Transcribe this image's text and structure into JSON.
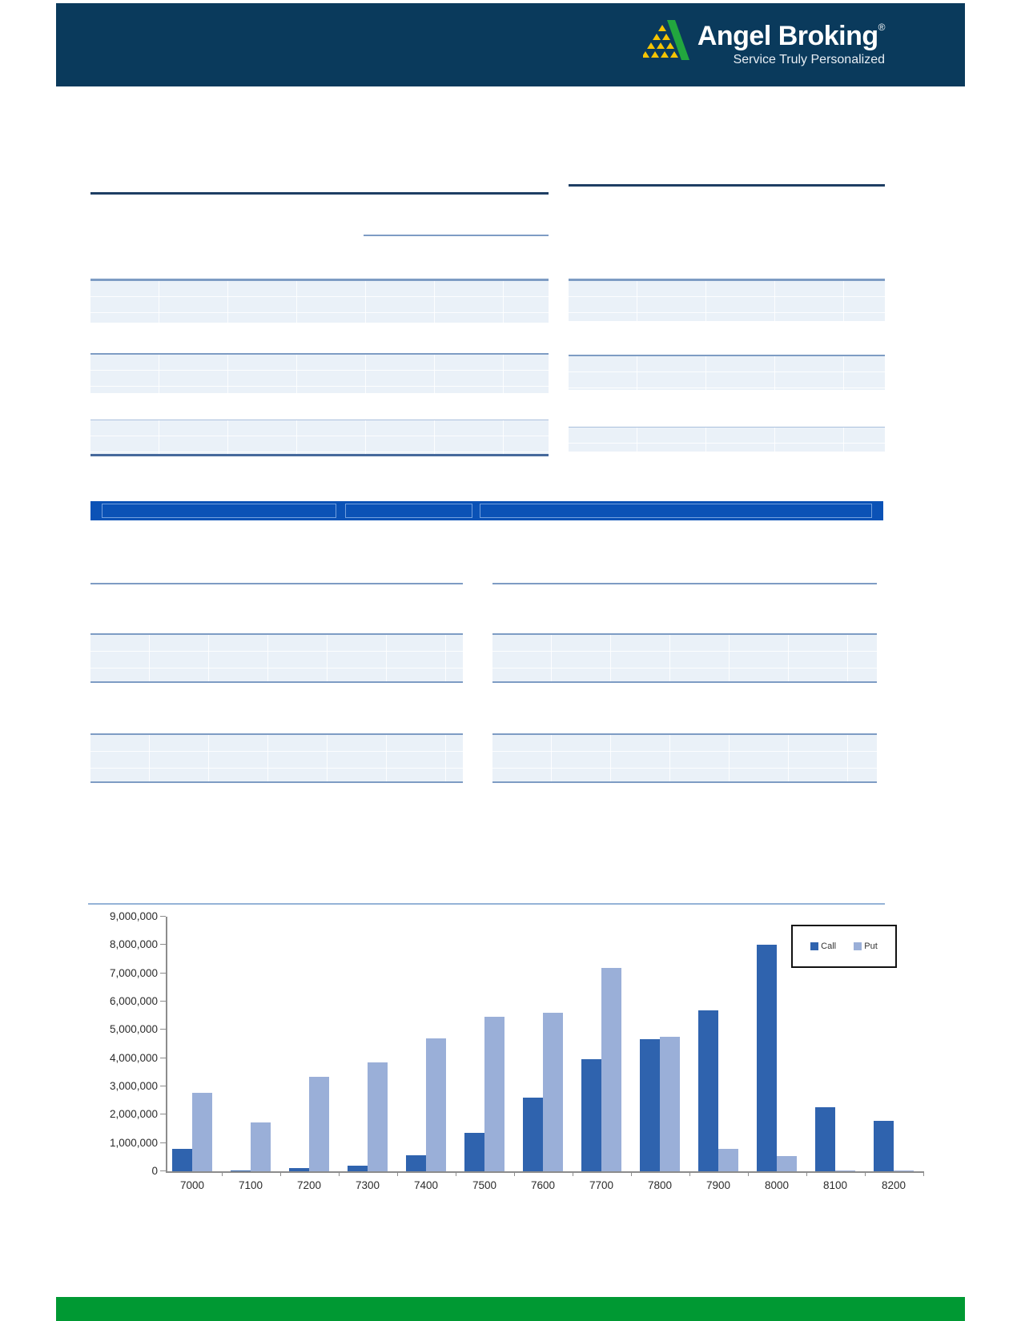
{
  "header": {
    "brand": "Angel Broking",
    "registered_mark": "®",
    "tagline": "Service Truly Personalized",
    "bg_color": "#0A3A5C",
    "logo_green": "#22A63E",
    "logo_yellow": "#F5C402"
  },
  "banner": {
    "bg_color": "#0B52B6"
  },
  "footer": {
    "bg_color": "#009933"
  },
  "accents": {
    "rule_dark_navy": "#1E3E63",
    "rule_medium_blue": "#7E9CC4",
    "rule_light_blue": "#95B3D7",
    "table_fill": "#EAF1F8"
  },
  "chart_data": {
    "type": "bar",
    "title": "",
    "categories": [
      "7000",
      "7100",
      "7200",
      "7300",
      "7400",
      "7500",
      "7600",
      "7700",
      "7800",
      "7900",
      "8000",
      "8100",
      "8200"
    ],
    "series": [
      {
        "name": "Call",
        "color": "#2F63AE",
        "values": [
          800000,
          30000,
          120000,
          200000,
          570000,
          1350000,
          2600000,
          3950000,
          4680000,
          5680000,
          8000000,
          2260000,
          1780000
        ]
      },
      {
        "name": "Put",
        "color": "#9AAFD8",
        "values": [
          2770000,
          1720000,
          3330000,
          3850000,
          4700000,
          5450000,
          5600000,
          7180000,
          4750000,
          800000,
          550000,
          40000,
          30000
        ]
      }
    ],
    "ylim": [
      0,
      9000000
    ],
    "ytick_labels": [
      "0",
      "1,000,000",
      "2,000,000",
      "3,000,000",
      "4,000,000",
      "5,000,000",
      "6,000,000",
      "7,000,000",
      "8,000,000",
      "9,000,000"
    ],
    "xlabel": "",
    "ylabel": "",
    "grid": false,
    "legend_position": "top-right"
  }
}
